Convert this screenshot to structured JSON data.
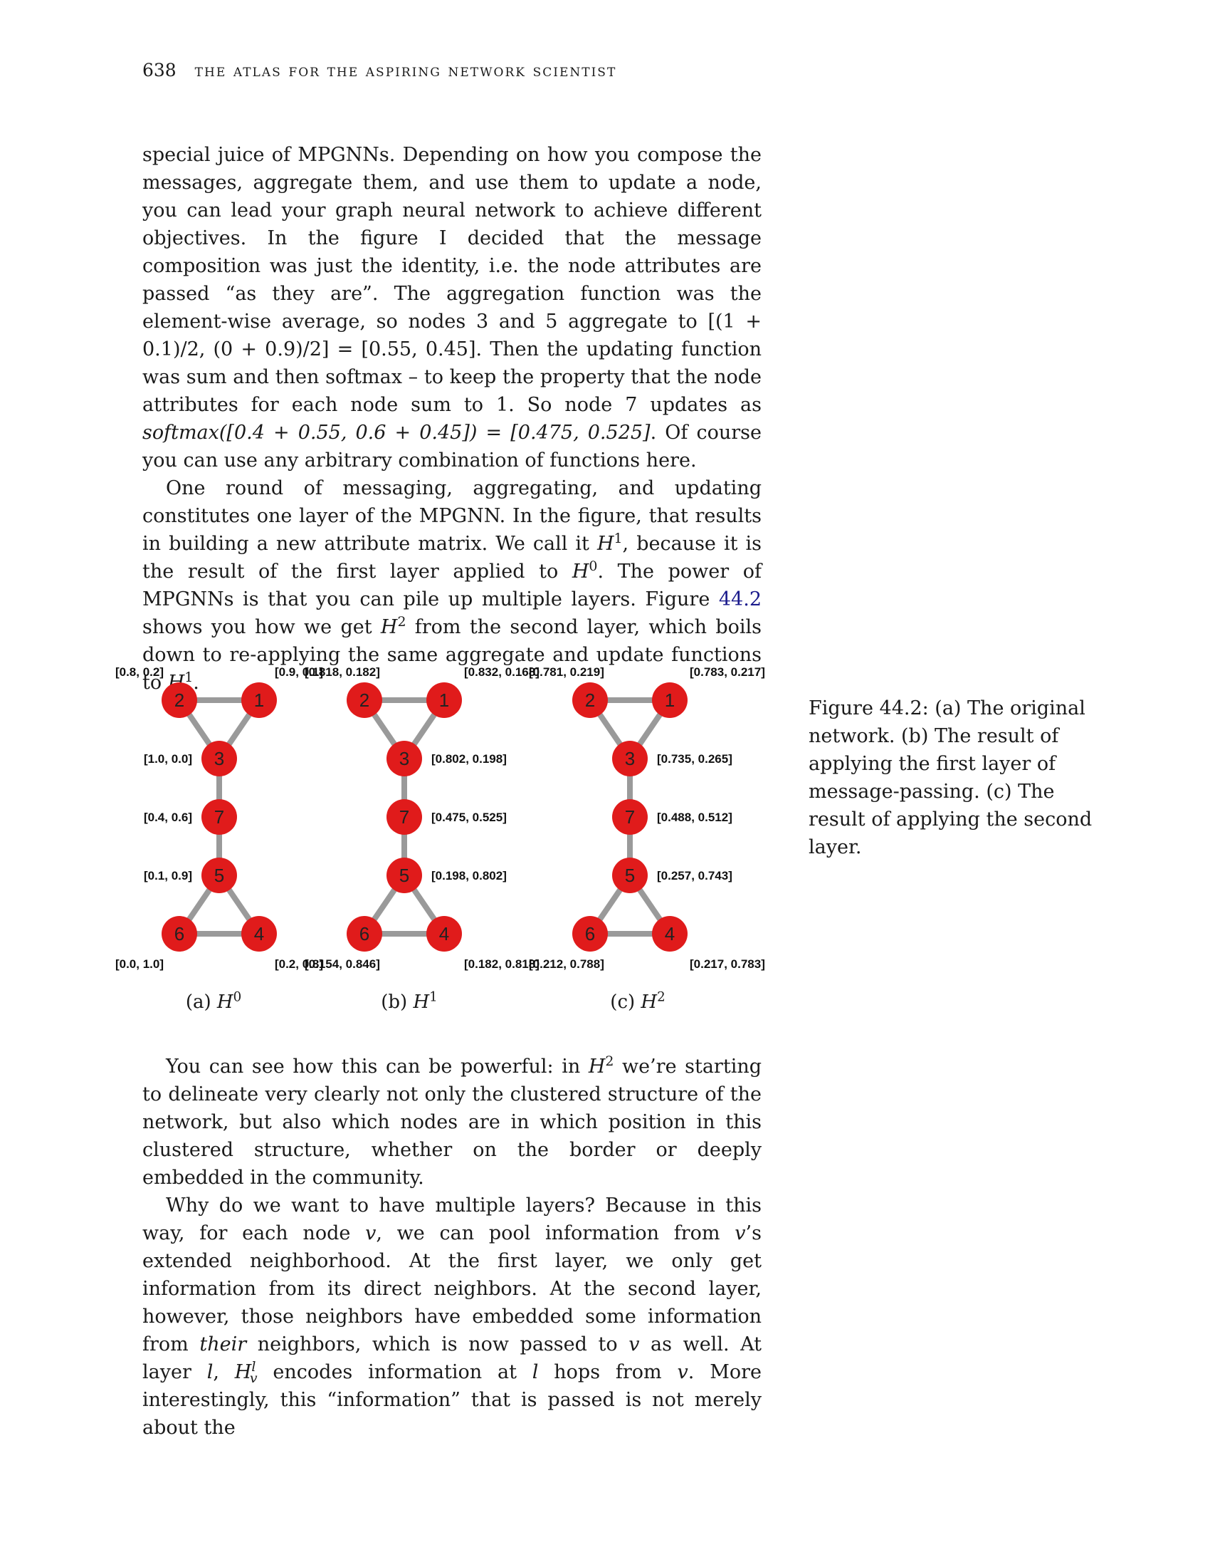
{
  "header": {
    "page_number": "638",
    "running_title": "the atlas for the aspiring network scientist"
  },
  "para1": [
    "special juice of MPGNNs. Depending on how you compose the messages, aggregate them, and use them to update a node, you can lead your graph neural network to achieve different objectives. In the figure I decided that the message composition was just the identity, i.e. the node attributes are passed “as they are”. The aggregation function was the element-wise average, so nodes 3 and 5 aggregate to ",
    "[(1 + 0.1)/2, (0 + 0.9)/2] = [0.55, 0.45]",
    ". Then the updating function was sum and then softmax – to keep the property that the node attributes for each node sum to 1. So node 7 updates as ",
    "softmax([0.4 + 0.55, 0.6 + 0.45]) = [0.475, 0.525]",
    ". Of course you can use any arbitrary combination of functions here."
  ],
  "para2": [
    "One round of messaging, aggregating, and updating constitutes one layer of the MPGNN. In the figure, that results in building a new attribute matrix. We call it ",
    "H",
    "1",
    ", because it is the result of the first layer applied to ",
    "H",
    "0",
    ". The power of MPGNNs is that you can pile up multiple layers. Figure ",
    "44.2",
    " shows you how we get ",
    "H",
    "2",
    " from the second layer, which boils down to re-applying the same aggregate and update functions to ",
    "H",
    "1",
    "."
  ],
  "figure": {
    "caption": "Figure 44.2: (a) The original network. (b) The result of applying the first layer of message-passing. (c) The result of applying the second layer.",
    "node_color": "#e01b1b",
    "edge_color": "#9a9a9a",
    "edges": [
      [
        "2",
        "1"
      ],
      [
        "2",
        "3"
      ],
      [
        "1",
        "3"
      ],
      [
        "3",
        "7"
      ],
      [
        "7",
        "5"
      ],
      [
        "5",
        "6"
      ],
      [
        "5",
        "4"
      ],
      [
        "6",
        "4"
      ]
    ],
    "panels": [
      {
        "sub_label": "(a)",
        "sub_var": "H",
        "sub_sup": "0",
        "labels": {
          "2": "[0.8, 0.2]",
          "1": "[0.9, 0.1]",
          "3": "[1.0, 0.0]",
          "7": "[0.4, 0.6]",
          "5": "[0.1, 0.9]",
          "6": "[0.0, 1.0]",
          "4": "[0.2, 0.8]"
        }
      },
      {
        "sub_label": "(b)",
        "sub_var": "H",
        "sub_sup": "1",
        "labels": {
          "2": "[0.818, 0.182]",
          "1": "[0.832, 0.168]",
          "3": "[0.802, 0.198]",
          "7": "[0.475, 0.525]",
          "5": "[0.198, 0.802]",
          "6": "[0.154, 0.846]",
          "4": "[0.182, 0.818]"
        }
      },
      {
        "sub_label": "(c)",
        "sub_var": "H",
        "sub_sup": "2",
        "labels": {
          "2": "[0.781, 0.219]",
          "1": "[0.783, 0.217]",
          "3": "[0.735, 0.265]",
          "7": "[0.488, 0.512]",
          "5": "[0.257, 0.743]",
          "6": "[0.212, 0.788]",
          "4": "[0.217, 0.783]"
        }
      }
    ]
  },
  "para3": [
    "You can see how this can be powerful: in ",
    "H",
    "2",
    " we’re starting to delineate very clearly not only the clustered structure of the network, but also which nodes are in which position in this clustered structure, whether on the border or deeply embedded in the community."
  ],
  "para4": [
    "Why do we want to have multiple layers? Because in this way, for each node ",
    "v",
    ", we can pool information from ",
    "v",
    "’s extended neighborhood. At the first layer, we only get information from its direct neighbors. At the second layer, however, those neighbors have embedded some information from ",
    "their",
    " neighbors, which is now passed to ",
    "v",
    " as well. At layer ",
    "l",
    ", ",
    "H",
    "l",
    "v",
    " encodes information at ",
    "l",
    " hops from ",
    "v",
    ". More interestingly, this “information” that is passed is not merely about the"
  ]
}
